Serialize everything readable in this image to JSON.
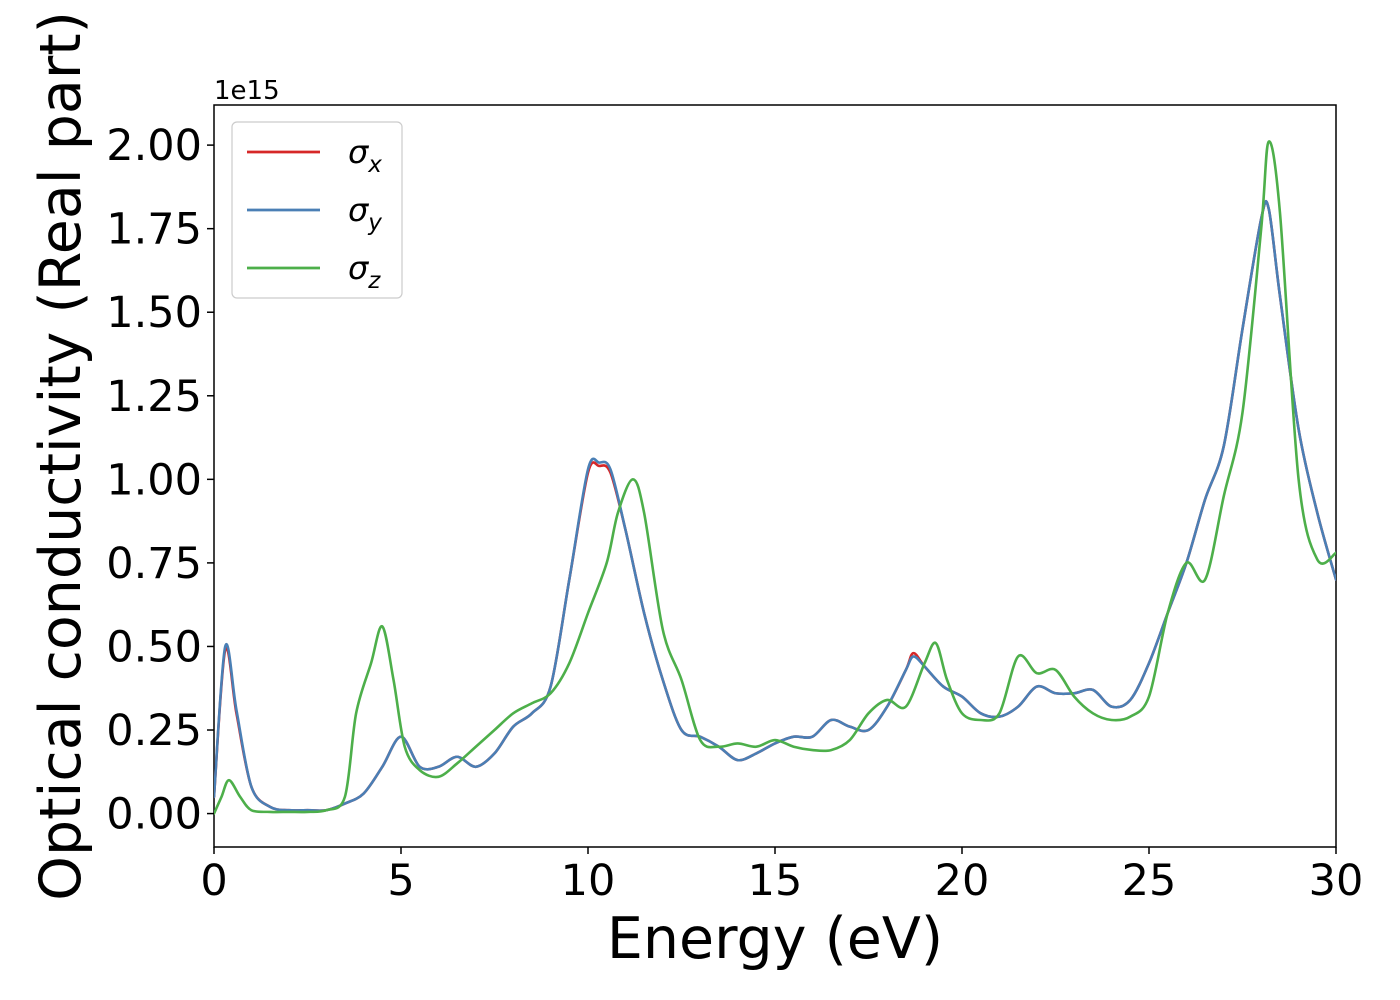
{
  "chart_data": {
    "type": "line",
    "title": "",
    "xlabel": "Energy (eV)",
    "ylabel": "Optical conductivity (Real part)",
    "y_offset_label": "1e15",
    "xlim": [
      0,
      30
    ],
    "ylim": [
      -0.1,
      2.12
    ],
    "xticks": [
      0,
      5,
      10,
      15,
      20,
      25,
      30
    ],
    "xtick_labels": [
      "0",
      "5",
      "10",
      "15",
      "20",
      "25",
      "30"
    ],
    "yticks": [
      0,
      0.25,
      0.5,
      0.75,
      1.0,
      1.25,
      1.5,
      1.75,
      2.0
    ],
    "ytick_labels": [
      "0.00",
      "0.25",
      "0.50",
      "0.75",
      "1.00",
      "1.25",
      "1.50",
      "1.75",
      "2.00"
    ],
    "grid": false,
    "legend_position": "upper-left",
    "series": [
      {
        "name": "σ",
        "subscript": "x",
        "color": "#d62728",
        "x": [
          0,
          0.3,
          0.6,
          1.0,
          1.5,
          2.0,
          2.5,
          3.0,
          3.5,
          4.0,
          4.5,
          5.0,
          5.5,
          6.0,
          6.5,
          7.0,
          7.5,
          8.0,
          8.5,
          9.0,
          9.5,
          10.0,
          10.3,
          10.6,
          11.0,
          11.5,
          12.0,
          12.5,
          13.0,
          13.5,
          14.0,
          14.5,
          15.0,
          15.5,
          16.0,
          16.5,
          17.0,
          17.5,
          18.0,
          18.5,
          18.7,
          19.0,
          19.5,
          20.0,
          20.5,
          21.0,
          21.5,
          22.0,
          22.5,
          23.0,
          23.5,
          24.0,
          24.5,
          25.0,
          25.5,
          26.0,
          26.5,
          27.0,
          27.5,
          28.0,
          28.2,
          28.5,
          29.0,
          29.5,
          30.0
        ],
        "values": [
          0.05,
          0.49,
          0.3,
          0.08,
          0.02,
          0.01,
          0.01,
          0.01,
          0.03,
          0.06,
          0.14,
          0.23,
          0.14,
          0.14,
          0.17,
          0.14,
          0.18,
          0.26,
          0.3,
          0.38,
          0.7,
          1.02,
          1.04,
          1.02,
          0.85,
          0.6,
          0.4,
          0.25,
          0.23,
          0.2,
          0.16,
          0.18,
          0.21,
          0.23,
          0.23,
          0.28,
          0.26,
          0.25,
          0.32,
          0.43,
          0.48,
          0.44,
          0.38,
          0.35,
          0.3,
          0.29,
          0.32,
          0.38,
          0.36,
          0.36,
          0.37,
          0.32,
          0.34,
          0.45,
          0.6,
          0.75,
          0.94,
          1.1,
          1.45,
          1.78,
          1.81,
          1.55,
          1.15,
          0.9,
          0.7
        ]
      },
      {
        "name": "σ",
        "subscript": "y",
        "color": "#4a7fb5",
        "x": [
          0,
          0.3,
          0.6,
          1.0,
          1.5,
          2.0,
          2.5,
          3.0,
          3.5,
          4.0,
          4.5,
          5.0,
          5.5,
          6.0,
          6.5,
          7.0,
          7.5,
          8.0,
          8.5,
          9.0,
          9.5,
          10.0,
          10.3,
          10.6,
          11.0,
          11.5,
          12.0,
          12.5,
          13.0,
          13.5,
          14.0,
          14.5,
          15.0,
          15.5,
          16.0,
          16.5,
          17.0,
          17.5,
          18.0,
          18.5,
          18.7,
          19.0,
          19.5,
          20.0,
          20.5,
          21.0,
          21.5,
          22.0,
          22.5,
          23.0,
          23.5,
          24.0,
          24.5,
          25.0,
          25.5,
          26.0,
          26.5,
          27.0,
          27.5,
          28.0,
          28.2,
          28.5,
          29.0,
          29.5,
          30.0
        ],
        "values": [
          0.05,
          0.5,
          0.31,
          0.08,
          0.02,
          0.01,
          0.01,
          0.01,
          0.03,
          0.06,
          0.14,
          0.23,
          0.14,
          0.14,
          0.17,
          0.14,
          0.18,
          0.26,
          0.3,
          0.38,
          0.7,
          1.03,
          1.05,
          1.03,
          0.85,
          0.6,
          0.4,
          0.25,
          0.23,
          0.2,
          0.16,
          0.18,
          0.21,
          0.23,
          0.23,
          0.28,
          0.26,
          0.25,
          0.32,
          0.43,
          0.47,
          0.44,
          0.38,
          0.35,
          0.3,
          0.29,
          0.32,
          0.38,
          0.36,
          0.36,
          0.37,
          0.32,
          0.34,
          0.45,
          0.6,
          0.75,
          0.94,
          1.1,
          1.45,
          1.78,
          1.81,
          1.55,
          1.15,
          0.9,
          0.7
        ]
      },
      {
        "name": "σ",
        "subscript": "z",
        "color": "#4daf4a",
        "x": [
          0,
          0.2,
          0.4,
          0.7,
          1.0,
          1.5,
          2.0,
          2.5,
          3.0,
          3.5,
          3.8,
          4.2,
          4.5,
          4.8,
          5.1,
          5.5,
          6.0,
          6.5,
          7.0,
          7.5,
          8.0,
          8.5,
          9.0,
          9.5,
          10.0,
          10.5,
          10.8,
          11.2,
          11.5,
          12.0,
          12.5,
          13.0,
          13.5,
          14.0,
          14.5,
          15.0,
          15.5,
          16.0,
          16.5,
          17.0,
          17.5,
          18.0,
          18.5,
          19.0,
          19.3,
          19.6,
          20.0,
          20.5,
          21.0,
          21.5,
          22.0,
          22.5,
          23.0,
          23.5,
          24.0,
          24.5,
          25.0,
          25.5,
          26.0,
          26.5,
          27.0,
          27.5,
          28.0,
          28.2,
          28.5,
          29.0,
          29.5,
          30.0
        ],
        "values": [
          0.0,
          0.05,
          0.1,
          0.05,
          0.01,
          0.005,
          0.005,
          0.005,
          0.01,
          0.05,
          0.3,
          0.45,
          0.56,
          0.4,
          0.2,
          0.13,
          0.11,
          0.15,
          0.2,
          0.25,
          0.3,
          0.33,
          0.36,
          0.45,
          0.6,
          0.75,
          0.9,
          1.0,
          0.9,
          0.55,
          0.4,
          0.22,
          0.2,
          0.21,
          0.2,
          0.22,
          0.2,
          0.19,
          0.19,
          0.22,
          0.3,
          0.34,
          0.32,
          0.45,
          0.51,
          0.4,
          0.3,
          0.28,
          0.3,
          0.47,
          0.42,
          0.43,
          0.35,
          0.3,
          0.28,
          0.29,
          0.35,
          0.6,
          0.75,
          0.7,
          0.95,
          1.2,
          1.75,
          2.01,
          1.8,
          1.0,
          0.76,
          0.78
        ]
      }
    ]
  }
}
